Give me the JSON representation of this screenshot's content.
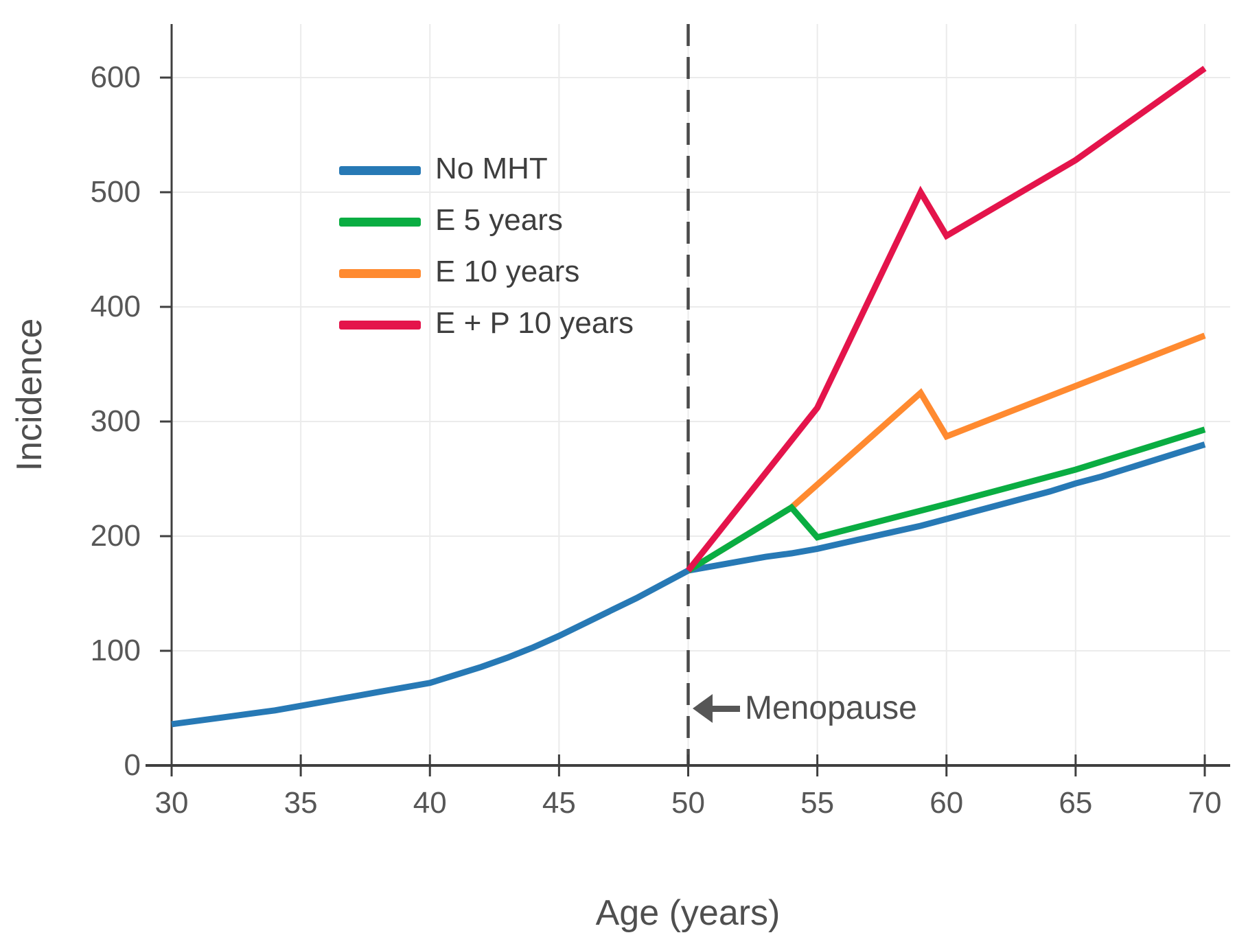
{
  "chart_data": {
    "type": "line",
    "title": "",
    "xlabel": "Age (years)",
    "ylabel": "Incidence",
    "xlim": [
      30,
      70
    ],
    "ylim": [
      0,
      647
    ],
    "x_ticks": [
      30,
      35,
      40,
      45,
      50,
      55,
      60,
      65,
      70
    ],
    "y_ticks": [
      0,
      100,
      200,
      300,
      400,
      500,
      600
    ],
    "grid": true,
    "legend_position": "upper left inside plot",
    "vline": {
      "x": 50,
      "style": "dashed",
      "color": "#4a4a4a"
    },
    "annotation": {
      "text": "Menopause",
      "arrow_direction": "left",
      "points_to_x": 50,
      "at_y": 50
    },
    "series": [
      {
        "name": "No MHT",
        "color": "#2779b5",
        "x": [
          30,
          31,
          32,
          33,
          34,
          35,
          36,
          37,
          38,
          39,
          40,
          41,
          42,
          43,
          44,
          45,
          46,
          47,
          48,
          49,
          50,
          51,
          52,
          53,
          54,
          55,
          56,
          57,
          58,
          59,
          60,
          61,
          62,
          63,
          64,
          65,
          66,
          67,
          68,
          69,
          70
        ],
        "y": [
          36,
          39,
          42,
          45,
          48,
          52,
          56,
          60,
          64,
          68,
          72,
          79,
          86,
          94,
          103,
          113,
          124,
          135,
          146,
          158,
          170,
          174,
          178,
          182,
          185,
          189,
          194,
          199,
          204,
          209,
          215,
          221,
          227,
          233,
          239,
          246,
          252,
          259,
          266,
          273,
          280
        ]
      },
      {
        "name": "E 5 years",
        "color": "#0aad42",
        "x": [
          50,
          54,
          55,
          60,
          65,
          70
        ],
        "y": [
          170,
          225,
          199,
          228,
          258,
          293
        ]
      },
      {
        "name": "E 10 years",
        "color": "#ff8a30",
        "x": [
          50,
          54,
          59,
          60,
          65,
          70
        ],
        "y": [
          170,
          225,
          325,
          287,
          331,
          375
        ]
      },
      {
        "name": "E + P 10 years",
        "color": "#e4144b",
        "x": [
          50,
          55,
          59,
          60,
          65,
          70
        ],
        "y": [
          170,
          312,
          500,
          462,
          528,
          608
        ]
      }
    ]
  }
}
